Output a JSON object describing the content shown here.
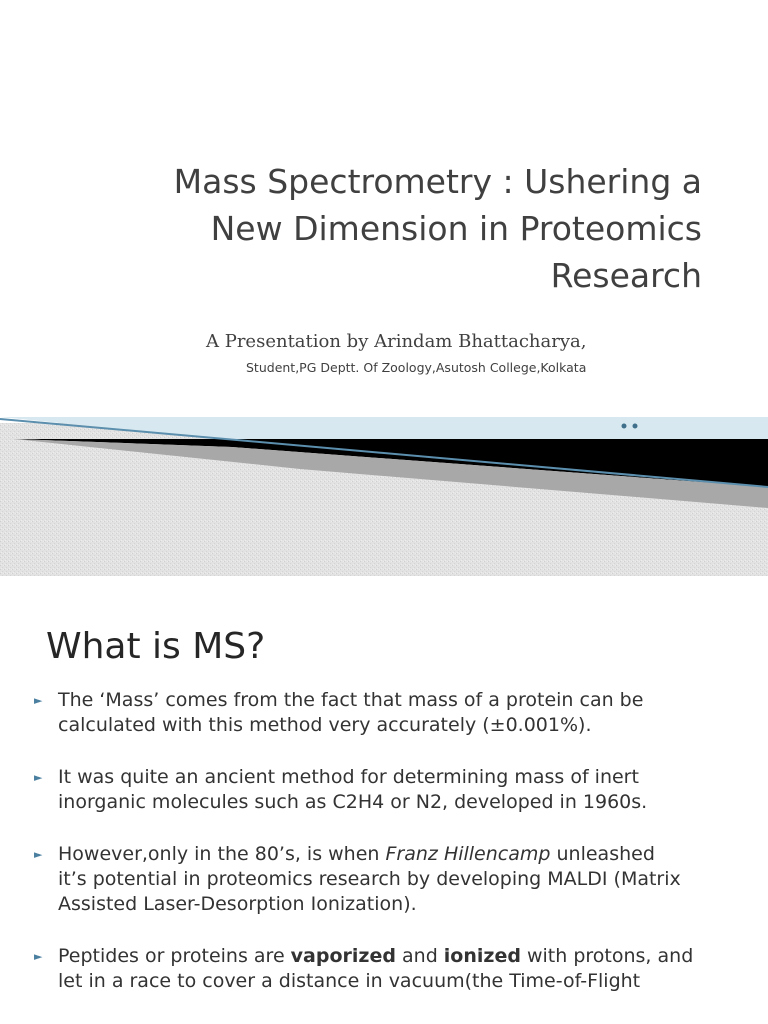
{
  "slide1": {
    "title_lines": [
      "Mass Spectrometry : Ushering a",
      "New Dimension in Proteomics",
      "Research"
    ],
    "subtitle": "A Presentation by Arindam Bhattacharya,",
    "byline": "Student,PG Deptt. Of Zoology,Asutosh College,Kolkata",
    "colors": {
      "accent_light": "#d7e8f0",
      "accent_line": "#5b8fad",
      "band": "#000000",
      "dots": "#3f6f8a"
    }
  },
  "slide2": {
    "heading": "What is MS?",
    "bullets": [
      {
        "lines": [
          [
            {
              "text": "The ‘Mass’ comes from the fact that mass of a protein can be"
            }
          ],
          [
            {
              "text": "calculated with this method very accurately (±0.001%)."
            }
          ]
        ]
      },
      {
        "lines": [
          [
            {
              "text": "It was quite an ancient method for determining mass of inert"
            }
          ],
          [
            {
              "text": "inorganic molecules such as C2H4 or N2, developed in 1960s."
            }
          ]
        ]
      },
      {
        "lines": [
          [
            {
              "text": "However,only  in the 80’s, is when "
            },
            {
              "text": "Franz Hillencamp",
              "style": "em"
            },
            {
              "text": " unleashed"
            }
          ],
          [
            {
              "text": "it’s potential in proteomics research by developing MALDI (Matrix"
            }
          ],
          [
            {
              "text": "Assisted Laser-Desorption Ionization)."
            }
          ]
        ]
      },
      {
        "lines": [
          [
            {
              "text": "Peptides or proteins are "
            },
            {
              "text": "vaporized",
              "style": "strong"
            },
            {
              "text": " and "
            },
            {
              "text": "ionized",
              "style": "strong"
            },
            {
              "text": " with protons, and"
            }
          ],
          [
            {
              "text": "let in a race to cover a distance in vacuum(the Time-of-Flight"
            }
          ]
        ]
      }
    ],
    "bullet_marker": "►",
    "colors": {
      "bullet_marker": "#4a7fa0"
    }
  }
}
